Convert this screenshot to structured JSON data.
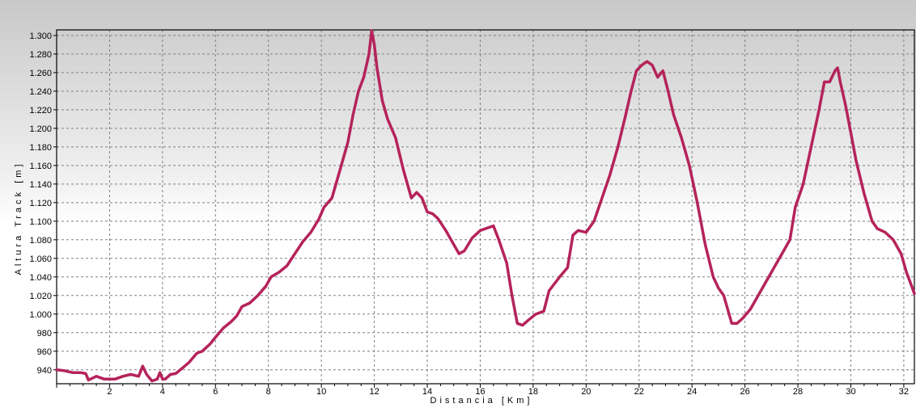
{
  "chart_data": {
    "type": "line",
    "title": "",
    "xlabel": "Distancia [Km]",
    "ylabel": "Altura Track [m]",
    "xlim": [
      0,
      32.4
    ],
    "ylim": [
      925,
      1306
    ],
    "x_ticks": [
      2,
      4,
      6,
      8,
      10,
      12,
      14,
      16,
      18,
      20,
      22,
      24,
      26,
      28,
      30,
      32
    ],
    "x_tick_labels": [
      "2",
      "4",
      "6",
      "8",
      "10",
      "12",
      "14",
      "16",
      "18",
      "20",
      "22",
      "24",
      "26",
      "28",
      "30",
      "32"
    ],
    "y_ticks": [
      940,
      960,
      980,
      1000,
      1020,
      1040,
      1060,
      1080,
      1100,
      1120,
      1140,
      1160,
      1180,
      1200,
      1220,
      1240,
      1260,
      1280,
      1300
    ],
    "y_tick_labels": [
      "940",
      "960",
      "980",
      "1.000",
      "1.020",
      "1.040",
      "1.060",
      "1.080",
      "1.100",
      "1.120",
      "1.140",
      "1.160",
      "1.180",
      "1.200",
      "1.220",
      "1.240",
      "1.260",
      "1.280",
      "1.300"
    ],
    "grid": true,
    "colors": {
      "line": "#B5235A",
      "background_top": "#C8C8C8",
      "background_bottom": "#FFFFFF",
      "grid": "#808080"
    },
    "series": [
      {
        "x": [
          0,
          0.3,
          0.6,
          0.9,
          1.1,
          1.2,
          1.5,
          1.8,
          2.0,
          2.2,
          2.5,
          2.8,
          3.1,
          3.25,
          3.4,
          3.6,
          3.8,
          3.9,
          4.0,
          4.1,
          4.3,
          4.5,
          4.8,
          5.0,
          5.3,
          5.5,
          5.8,
          6.0,
          6.3,
          6.6,
          6.8,
          7.0,
          7.3,
          7.6,
          7.9,
          8.1,
          8.4,
          8.7,
          9.0,
          9.3,
          9.6,
          9.9,
          10.1,
          10.4,
          10.7,
          11.0,
          11.2,
          11.4,
          11.6,
          11.8,
          11.9,
          12.0,
          12.1,
          12.3,
          12.5,
          12.8,
          13.1,
          13.4,
          13.6,
          13.8,
          14.0,
          14.2,
          14.4,
          14.7,
          15.0,
          15.2,
          15.4,
          15.7,
          16.0,
          16.3,
          16.5,
          16.7,
          17.0,
          17.2,
          17.4,
          17.6,
          17.8,
          18.1,
          18.4,
          18.6,
          19.0,
          19.3,
          19.5,
          19.7,
          20.0,
          20.3,
          20.6,
          20.9,
          21.2,
          21.5,
          21.7,
          21.9,
          22.1,
          22.3,
          22.5,
          22.7,
          22.9,
          23.1,
          23.3,
          23.6,
          23.9,
          24.2,
          24.5,
          24.8,
          25.0,
          25.2,
          25.5,
          25.7,
          25.9,
          26.2,
          26.5,
          26.8,
          27.1,
          27.4,
          27.7,
          27.9,
          28.2,
          28.5,
          28.8,
          29.0,
          29.2,
          29.4,
          29.5,
          29.6,
          29.8,
          30.0,
          30.2,
          30.5,
          30.8,
          31.0,
          31.3,
          31.6,
          31.9,
          32.1,
          32.3,
          32.4
        ],
        "y": [
          940,
          939,
          937,
          937,
          936,
          929,
          933,
          930,
          930,
          930,
          933,
          935,
          933,
          944,
          935,
          928,
          930,
          937,
          930,
          930,
          935,
          936,
          943,
          948,
          958,
          960,
          968,
          975,
          985,
          992,
          998,
          1008,
          1012,
          1020,
          1030,
          1040,
          1045,
          1052,
          1065,
          1078,
          1088,
          1102,
          1115,
          1125,
          1155,
          1185,
          1215,
          1240,
          1255,
          1280,
          1305,
          1290,
          1265,
          1230,
          1210,
          1190,
          1155,
          1125,
          1131,
          1125,
          1110,
          1108,
          1103,
          1090,
          1075,
          1065,
          1068,
          1082,
          1090,
          1093,
          1095,
          1080,
          1055,
          1020,
          990,
          988,
          993,
          1000,
          1003,
          1025,
          1040,
          1050,
          1085,
          1090,
          1088,
          1100,
          1125,
          1150,
          1180,
          1215,
          1240,
          1262,
          1268,
          1272,
          1268,
          1255,
          1262,
          1240,
          1215,
          1190,
          1160,
          1120,
          1075,
          1040,
          1028,
          1020,
          990,
          990,
          995,
          1005,
          1020,
          1035,
          1050,
          1065,
          1080,
          1115,
          1140,
          1180,
          1220,
          1250,
          1250,
          1262,
          1265,
          1250,
          1225,
          1195,
          1165,
          1130,
          1100,
          1092,
          1088,
          1080,
          1065,
          1045,
          1030,
          1022
        ]
      }
    ]
  }
}
